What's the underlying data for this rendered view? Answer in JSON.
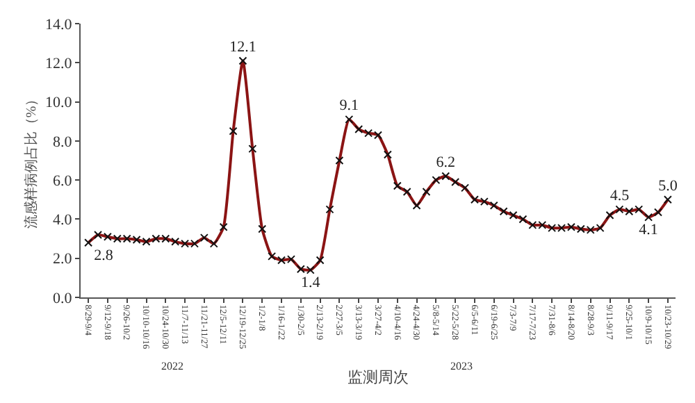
{
  "chart_data": {
    "type": "line",
    "xlabel": "监测周次",
    "ylabel": "流感样病例占比（%）",
    "categories": [
      "8/29-9/4",
      null,
      "9/12-9/18",
      null,
      "9/26-10/2",
      null,
      "10/10-10/16",
      null,
      "10/24-10/30",
      null,
      "11/7-11/13",
      null,
      "11/21-11/27",
      null,
      "12/5-12/11",
      null,
      "12/19-12/25",
      null,
      "1/2-1/8",
      null,
      "1/16-1/22",
      null,
      "1/30-2/5",
      null,
      "2/13-2/19",
      null,
      "2/27-3/5",
      null,
      "3/13-3/19",
      null,
      "3/27-4/2",
      null,
      "4/10-4/16",
      null,
      "4/24-4/30",
      null,
      "5/8-5/14",
      null,
      "5/22-5/28",
      null,
      "6/5-6/11",
      null,
      "6/19-6/25",
      null,
      "7/3-7/9",
      null,
      "7/17-7/23",
      null,
      "7/31-8/6",
      null,
      "8/14-8/20",
      null,
      "8/28-9/3",
      null,
      "9/11-9/17",
      null,
      "9/25-10/1",
      null,
      "10/9-10/15",
      null,
      "10/23-10/29"
    ],
    "series": [
      {
        "color": "#8b1414",
        "values": [
          2.8,
          3.2,
          3.1,
          3.0,
          3.0,
          2.95,
          2.85,
          3.0,
          3.0,
          2.85,
          2.75,
          2.75,
          3.05,
          2.75,
          3.6,
          8.5,
          12.1,
          7.6,
          3.5,
          2.1,
          1.9,
          1.95,
          1.45,
          1.4,
          1.9,
          4.5,
          7.0,
          9.1,
          8.6,
          8.4,
          8.3,
          7.3,
          5.7,
          5.4,
          4.7,
          5.4,
          6.0,
          6.2,
          5.9,
          5.6,
          5.0,
          4.9,
          4.7,
          4.4,
          4.2,
          4.0,
          3.7,
          3.7,
          3.55,
          3.55,
          3.6,
          3.5,
          3.45,
          3.55,
          4.2,
          4.5,
          4.4,
          4.5,
          4.1,
          4.35,
          5.0
        ],
        "value_labels": [
          "2.8",
          null,
          null,
          null,
          null,
          null,
          null,
          null,
          null,
          null,
          null,
          null,
          null,
          null,
          null,
          null,
          "12.1",
          null,
          null,
          null,
          null,
          null,
          null,
          "1.4",
          null,
          null,
          null,
          "9.1",
          null,
          null,
          null,
          null,
          null,
          null,
          null,
          null,
          null,
          "6.2",
          null,
          null,
          null,
          null,
          null,
          null,
          null,
          null,
          null,
          null,
          null,
          null,
          null,
          null,
          null,
          null,
          null,
          "4.5",
          null,
          null,
          "4.1",
          null,
          "5.0"
        ]
      }
    ],
    "annotations": [
      "2022",
      "2023"
    ],
    "ylim": [
      0,
      14
    ],
    "yticks": [
      {
        "value": 0,
        "label": "0.0"
      },
      {
        "value": 2,
        "label": "2.0"
      },
      {
        "value": 4,
        "label": "4.0"
      },
      {
        "value": 6,
        "label": "6.0"
      },
      {
        "value": 8,
        "label": "8.0"
      },
      {
        "value": 10,
        "label": "10.0"
      },
      {
        "value": 12,
        "label": "12.0"
      },
      {
        "value": 14,
        "label": "14.0"
      }
    ],
    "marker": "cross",
    "line_style": "solid"
  }
}
